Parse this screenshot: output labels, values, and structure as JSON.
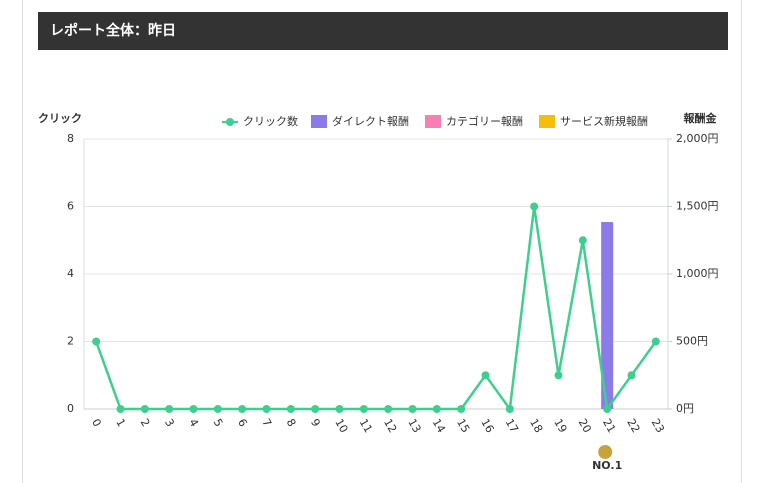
{
  "header": {
    "title": "レポート全体：昨日"
  },
  "chart_data": {
    "type": "combo",
    "categories": [
      "0",
      "1",
      "2",
      "3",
      "4",
      "5",
      "6",
      "7",
      "8",
      "9",
      "10",
      "11",
      "12",
      "13",
      "14",
      "15",
      "16",
      "17",
      "18",
      "19",
      "20",
      "21",
      "22",
      "23"
    ],
    "y_label": "クリック",
    "y2_label": "報酬金",
    "ylim": [
      0,
      8
    ],
    "yticks": [
      0,
      2,
      4,
      6,
      8
    ],
    "y2lim": [
      0,
      2000
    ],
    "y2ticks": [
      {
        "value": 0,
        "label": "0円"
      },
      {
        "value": 500,
        "label": "500円"
      },
      {
        "value": 1000,
        "label": "1,000円"
      },
      {
        "value": 1500,
        "label": "1,500円"
      },
      {
        "value": 2000,
        "label": "2,000円"
      }
    ],
    "grid": true,
    "legend": "top-right",
    "series": [
      {
        "name": "クリック数",
        "type": "line",
        "color": "#3ecf8e",
        "values": [
          2,
          0,
          0,
          0,
          0,
          0,
          0,
          0,
          0,
          0,
          0,
          0,
          0,
          0,
          0,
          0,
          1,
          0,
          6,
          1,
          5,
          0,
          1,
          2
        ]
      },
      {
        "name": "ダイレクト報酬",
        "type": "bar",
        "axis": "y2",
        "color": "#8b7be8",
        "values": [
          0,
          0,
          0,
          0,
          0,
          0,
          0,
          0,
          0,
          0,
          0,
          0,
          0,
          0,
          0,
          0,
          0,
          0,
          0,
          0,
          0,
          1385,
          0,
          0
        ]
      },
      {
        "name": "カテゴリー報酬",
        "type": "bar",
        "axis": "y2",
        "color": "#f77fb3",
        "values": [
          0,
          0,
          0,
          0,
          0,
          0,
          0,
          0,
          0,
          0,
          0,
          0,
          0,
          0,
          0,
          0,
          0,
          0,
          0,
          0,
          0,
          0,
          0,
          0
        ]
      },
      {
        "name": "サービス新規報酬",
        "type": "bar",
        "axis": "y2",
        "color": "#f5be0b",
        "values": [
          0,
          0,
          0,
          0,
          0,
          0,
          0,
          0,
          0,
          0,
          0,
          0,
          0,
          0,
          0,
          0,
          0,
          0,
          0,
          0,
          0,
          0,
          0,
          0
        ]
      }
    ],
    "badge": "NO.1"
  }
}
